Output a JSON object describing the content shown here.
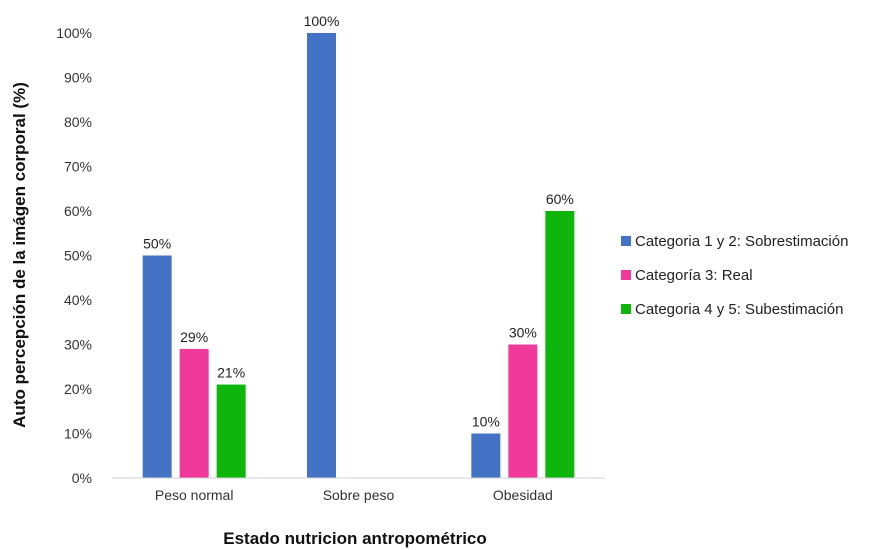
{
  "chart_data": {
    "type": "bar",
    "categories": [
      "Peso normal",
      "Sobre peso",
      "Obesidad"
    ],
    "series": [
      {
        "name": "Categoria 1 y 2: Sobrestimación",
        "color": "#4472C4",
        "values": [
          50,
          100,
          10
        ],
        "labels": [
          "50%",
          "100%",
          "10%"
        ]
      },
      {
        "name": "Categoría 3: Real",
        "color": "#F0399B",
        "values": [
          29,
          null,
          30
        ],
        "labels": [
          "29%",
          "",
          "30%"
        ]
      },
      {
        "name": "Categoria 4 y 5: Subestimación",
        "color": "#0DB50D",
        "values": [
          21,
          null,
          60
        ],
        "labels": [
          "21%",
          "",
          "60%"
        ]
      }
    ],
    "yticks": [
      "0%",
      "10%",
      "20%",
      "30%",
      "40%",
      "50%",
      "60%",
      "70%",
      "80%",
      "90%",
      "100%"
    ],
    "ylim": [
      0,
      100
    ],
    "xlabel": "Estado nutricion antropométrico",
    "ylabel": "Auto percepción de la imágen corporal (%)",
    "grid": false,
    "legend": "right"
  }
}
